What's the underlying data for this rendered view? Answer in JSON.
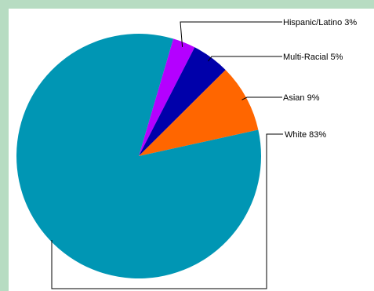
{
  "chart_data": {
    "type": "pie",
    "title": "",
    "legend": "none",
    "slices": [
      {
        "label": "Hispanic/Latino 3%",
        "value": 3,
        "color": "#b400ff"
      },
      {
        "label": "Multi-Racial 5%",
        "value": 5,
        "color": "#0000aa"
      },
      {
        "label": "Asian 9%",
        "value": 9,
        "color": "#ff6600"
      },
      {
        "label": "White 83%",
        "value": 83,
        "color": "#0096b4"
      }
    ]
  }
}
